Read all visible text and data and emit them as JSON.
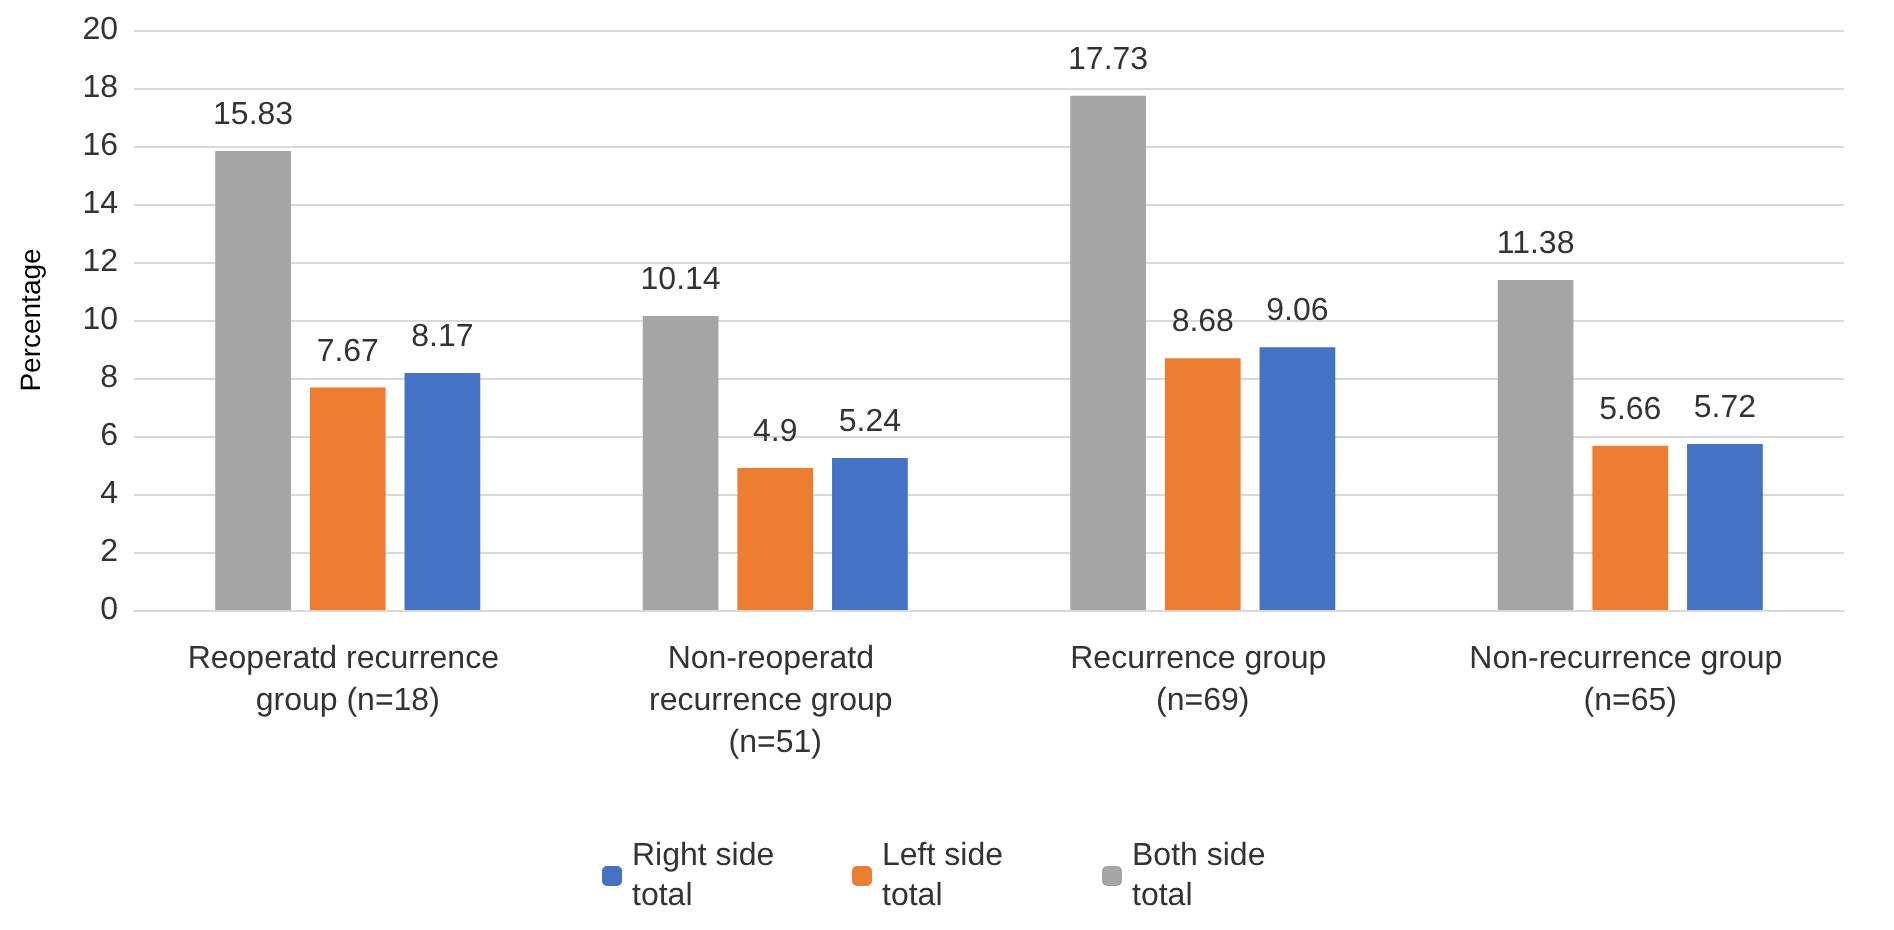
{
  "chart_data": {
    "type": "bar",
    "ylabel": "Percentage",
    "categories": [
      "Reoperatd recurrence group (n=18)",
      "Non-reoperatd recurrence group (n=51)",
      "Recurrence group (n=69)",
      "Non-recurrence group (n=65)"
    ],
    "series": [
      {
        "name": "Both side total",
        "color": "#a5a5a5",
        "values": [
          15.83,
          10.14,
          17.73,
          11.38
        ]
      },
      {
        "name": "Left side total",
        "color": "#ed7d31",
        "values": [
          7.67,
          4.9,
          8.68,
          5.66
        ]
      },
      {
        "name": "Right side total",
        "color": "#4472c4",
        "values": [
          8.17,
          5.24,
          9.06,
          5.72
        ]
      }
    ],
    "ylim": [
      0,
      20
    ],
    "yticks": [
      0,
      2,
      4,
      6,
      8,
      10,
      12,
      14,
      16,
      18,
      20
    ],
    "grid": "y",
    "legend": "bottom",
    "data_labels": true
  }
}
